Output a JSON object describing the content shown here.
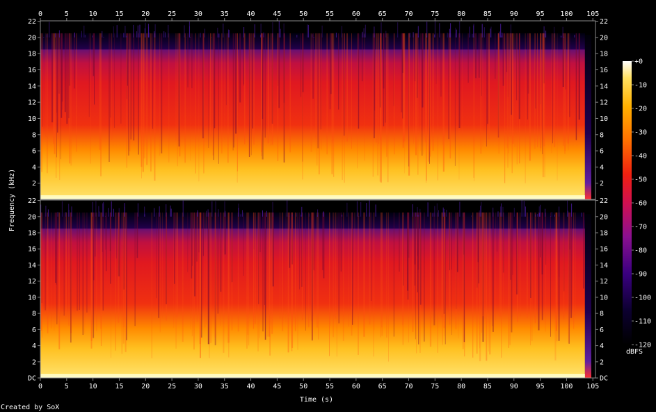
{
  "chart_data": {
    "type": "heatmap",
    "title": "",
    "xlabel": "Time (s)",
    "ylabel": "Frequency (kHz)",
    "xlim": [
      0,
      105.5
    ],
    "ylim": [
      0,
      22.05
    ],
    "x_ticks": [
      0,
      5,
      10,
      15,
      20,
      25,
      30,
      35,
      40,
      45,
      50,
      55,
      60,
      65,
      70,
      75,
      80,
      85,
      90,
      95,
      100,
      105
    ],
    "y_ticks": [
      "DC",
      "2",
      "4",
      "6",
      "8",
      "10",
      "12",
      "14",
      "16",
      "18",
      "20",
      "22"
    ],
    "y_top_panel_bottom_label": "22",
    "channels": 2,
    "colorbar": {
      "label": "dBFS",
      "ticks": [
        "+0",
        "-10",
        "-20",
        "-30",
        "-40",
        "-50",
        "-60",
        "-70",
        "-80",
        "-90",
        "-100",
        "-110",
        "-120"
      ],
      "range": [
        -120,
        0
      ]
    },
    "audio_end_s": 103.5,
    "cutoff_khz": 20,
    "series": []
  },
  "footer": {
    "credit": "Created by SoX"
  },
  "colors": {
    "background": "#000000",
    "frame": "#888888",
    "text": "#ffffff"
  }
}
